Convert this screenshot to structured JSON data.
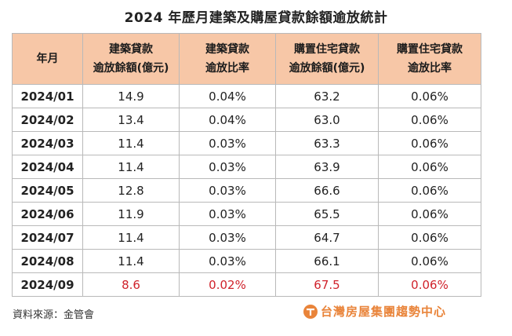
{
  "title": "2024 年歷月建築及購屋貸款餘額逾放統計",
  "table": {
    "headers": [
      {
        "lines": [
          "年月"
        ]
      },
      {
        "lines": [
          "建築貸款",
          "逾放餘額(億元)"
        ]
      },
      {
        "lines": [
          "建築貸款",
          "逾放比率"
        ]
      },
      {
        "lines": [
          "購置住宅貸款",
          "逾放餘額(億元)"
        ]
      },
      {
        "lines": [
          "購置住宅貸款",
          "逾放比率"
        ]
      }
    ],
    "rows": [
      {
        "period": "2024/01",
        "construction_overdue": "14.9",
        "construction_ratio": "0.04%",
        "housing_overdue": "63.2",
        "housing_ratio": "0.06%"
      },
      {
        "period": "2024/02",
        "construction_overdue": "13.4",
        "construction_ratio": "0.04%",
        "housing_overdue": "63.0",
        "housing_ratio": "0.06%"
      },
      {
        "period": "2024/03",
        "construction_overdue": "11.4",
        "construction_ratio": "0.03%",
        "housing_overdue": "63.3",
        "housing_ratio": "0.06%"
      },
      {
        "period": "2024/04",
        "construction_overdue": "11.4",
        "construction_ratio": "0.03%",
        "housing_overdue": "63.9",
        "housing_ratio": "0.06%"
      },
      {
        "period": "2024/05",
        "construction_overdue": "12.8",
        "construction_ratio": "0.03%",
        "housing_overdue": "66.6",
        "housing_ratio": "0.06%"
      },
      {
        "period": "2024/06",
        "construction_overdue": "11.9",
        "construction_ratio": "0.03%",
        "housing_overdue": "65.5",
        "housing_ratio": "0.06%"
      },
      {
        "period": "2024/07",
        "construction_overdue": "11.4",
        "construction_ratio": "0.03%",
        "housing_overdue": "64.7",
        "housing_ratio": "0.06%"
      },
      {
        "period": "2024/08",
        "construction_overdue": "11.4",
        "construction_ratio": "0.03%",
        "housing_overdue": "66.1",
        "housing_ratio": "0.06%"
      },
      {
        "period": "2024/09",
        "construction_overdue": "8.6",
        "construction_ratio": "0.02%",
        "housing_overdue": "67.5",
        "housing_ratio": "0.06%",
        "highlight": true
      }
    ]
  },
  "footer": {
    "source": "資料來源：金管會",
    "brand": "台灣房屋集團趨勢中心"
  },
  "colors": {
    "header_bg": "#f7c7a7",
    "highlight_text": "#d0222b",
    "brand": "#e9843a"
  }
}
